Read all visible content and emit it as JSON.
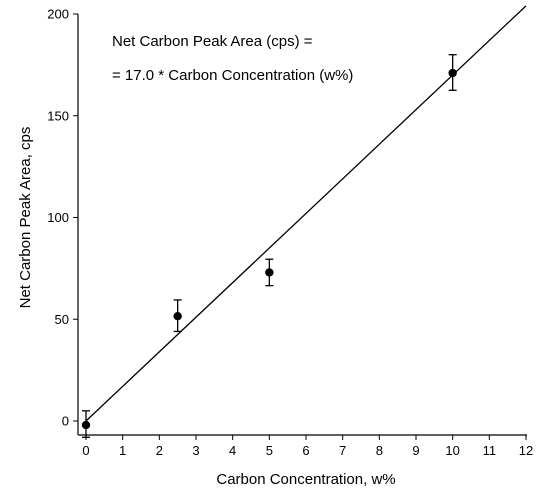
{
  "chart_data": {
    "type": "scatter",
    "title": "",
    "xlabel": "Carbon Concentration, w%",
    "ylabel": "Net Carbon Peak Area, cps",
    "xlim": [
      0,
      12
    ],
    "ylim": [
      0,
      200
    ],
    "x_ticks": [
      "0",
      "1",
      "2",
      "3",
      "4",
      "5",
      "6",
      "7",
      "8",
      "9",
      "10",
      "11",
      "12"
    ],
    "y_ticks": [
      "0",
      "50",
      "100",
      "150",
      "200"
    ],
    "grid": false,
    "points": [
      {
        "x": 0,
        "y": -2,
        "err_low": -8,
        "err_high": 5
      },
      {
        "x": 2.5,
        "y": 51.5,
        "err_low": 44,
        "err_high": 59.5
      },
      {
        "x": 5,
        "y": 73,
        "err_low": 66.5,
        "err_high": 79.5
      },
      {
        "x": 10,
        "y": 171,
        "err_low": 162.5,
        "err_high": 180
      }
    ],
    "fit_line": {
      "slope": 17.0,
      "intercept": 0,
      "x_range": [
        0,
        12
      ]
    },
    "annotations": [
      "Net Carbon Peak Area (cps) =",
      "= 17.0 * Carbon Concentration (w%)"
    ]
  }
}
